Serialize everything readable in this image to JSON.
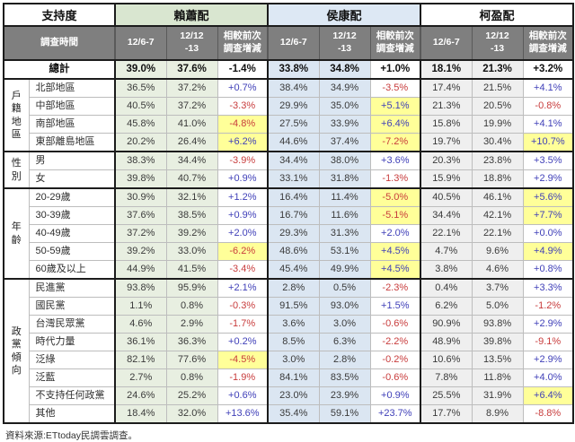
{
  "chart_data": {
    "type": "table",
    "corner_label": "支持度",
    "time_label": "調查時間",
    "candidates": [
      "賴蕭配",
      "侯康配",
      "柯盈配"
    ],
    "columns": [
      "12/6-7",
      "12/12\n-13",
      "相較前次\n調查增減"
    ],
    "legend": "change cell: blue = increase, red = decrease, yellow fill = notable shift",
    "total": {
      "label": "總計",
      "cells": [
        [
          "39.0%",
          "37.6%",
          "-1.4%",
          0
        ],
        [
          "33.8%",
          "34.8%",
          "+1.0%",
          0
        ],
        [
          "18.1%",
          "21.3%",
          "+3.2%",
          0
        ]
      ]
    },
    "sections": [
      {
        "label": "戶籍地區",
        "rows": [
          {
            "label": "北部地區",
            "cells": [
              [
                "36.5%",
                "37.2%",
                "+0.7%",
                0
              ],
              [
                "38.4%",
                "34.9%",
                "-3.5%",
                0
              ],
              [
                "17.4%",
                "21.5%",
                "+4.1%",
                0
              ]
            ]
          },
          {
            "label": "中部地區",
            "cells": [
              [
                "40.5%",
                "37.2%",
                "-3.3%",
                0
              ],
              [
                "29.9%",
                "35.0%",
                "+5.1%",
                1
              ],
              [
                "21.3%",
                "20.5%",
                "-0.8%",
                0
              ]
            ]
          },
          {
            "label": "南部地區",
            "cells": [
              [
                "45.8%",
                "41.0%",
                "-4.8%",
                1
              ],
              [
                "27.5%",
                "33.9%",
                "+6.4%",
                1
              ],
              [
                "15.8%",
                "19.9%",
                "+4.1%",
                0
              ]
            ]
          },
          {
            "label": "東部離島地區",
            "cells": [
              [
                "20.2%",
                "26.4%",
                "+6.2%",
                1
              ],
              [
                "44.6%",
                "37.4%",
                "-7.2%",
                1
              ],
              [
                "19.7%",
                "30.4%",
                "+10.7%",
                1
              ]
            ]
          }
        ]
      },
      {
        "label": "性別",
        "rows": [
          {
            "label": "男",
            "cells": [
              [
                "38.3%",
                "34.4%",
                "-3.9%",
                0
              ],
              [
                "34.4%",
                "38.0%",
                "+3.6%",
                0
              ],
              [
                "20.3%",
                "23.8%",
                "+3.5%",
                0
              ]
            ]
          },
          {
            "label": "女",
            "cells": [
              [
                "39.8%",
                "40.7%",
                "+0.9%",
                0
              ],
              [
                "33.1%",
                "31.8%",
                "-1.3%",
                0
              ],
              [
                "15.9%",
                "18.8%",
                "+2.9%",
                0
              ]
            ]
          }
        ]
      },
      {
        "label": "年齡",
        "rows": [
          {
            "label": "20-29歲",
            "cells": [
              [
                "30.9%",
                "32.1%",
                "+1.2%",
                0
              ],
              [
                "16.4%",
                "11.4%",
                "-5.0%",
                1
              ],
              [
                "40.5%",
                "46.1%",
                "+5.6%",
                1
              ]
            ]
          },
          {
            "label": "30-39歲",
            "cells": [
              [
                "37.6%",
                "38.5%",
                "+0.9%",
                0
              ],
              [
                "16.7%",
                "11.6%",
                "-5.1%",
                1
              ],
              [
                "34.4%",
                "42.1%",
                "+7.7%",
                1
              ]
            ]
          },
          {
            "label": "40-49歲",
            "cells": [
              [
                "37.2%",
                "39.2%",
                "+2.0%",
                0
              ],
              [
                "29.3%",
                "31.3%",
                "+2.0%",
                0
              ],
              [
                "22.1%",
                "22.1%",
                "+0.0%",
                0
              ]
            ]
          },
          {
            "label": "50-59歲",
            "cells": [
              [
                "39.2%",
                "33.0%",
                "-6.2%",
                1
              ],
              [
                "48.6%",
                "53.1%",
                "+4.5%",
                1
              ],
              [
                "4.7%",
                "9.6%",
                "+4.9%",
                1
              ]
            ]
          },
          {
            "label": "60歲及以上",
            "cells": [
              [
                "44.9%",
                "41.5%",
                "-3.4%",
                0
              ],
              [
                "45.4%",
                "49.9%",
                "+4.5%",
                1
              ],
              [
                "3.8%",
                "4.6%",
                "+0.8%",
                0
              ]
            ]
          }
        ]
      },
      {
        "label": "政黨傾向",
        "rows": [
          {
            "label": "民進黨",
            "cells": [
              [
                "93.8%",
                "95.9%",
                "+2.1%",
                0
              ],
              [
                "2.8%",
                "0.5%",
                "-2.3%",
                0
              ],
              [
                "0.4%",
                "3.7%",
                "+3.3%",
                0
              ]
            ]
          },
          {
            "label": "國民黨",
            "cells": [
              [
                "1.1%",
                "0.8%",
                "-0.3%",
                0
              ],
              [
                "91.5%",
                "93.0%",
                "+1.5%",
                0
              ],
              [
                "6.2%",
                "5.0%",
                "-1.2%",
                0
              ]
            ]
          },
          {
            "label": "台灣民眾黨",
            "cells": [
              [
                "4.6%",
                "2.9%",
                "-1.7%",
                0
              ],
              [
                "3.6%",
                "3.0%",
                "-0.6%",
                0
              ],
              [
                "90.9%",
                "93.8%",
                "+2.9%",
                0
              ]
            ]
          },
          {
            "label": "時代力量",
            "cells": [
              [
                "36.1%",
                "36.3%",
                "+0.2%",
                0
              ],
              [
                "8.5%",
                "6.3%",
                "-2.2%",
                0
              ],
              [
                "48.9%",
                "39.8%",
                "-9.1%",
                0
              ]
            ]
          },
          {
            "label": "泛綠",
            "cells": [
              [
                "82.1%",
                "77.6%",
                "-4.5%",
                1
              ],
              [
                "3.0%",
                "2.8%",
                "-0.2%",
                0
              ],
              [
                "10.6%",
                "13.5%",
                "+2.9%",
                0
              ]
            ]
          },
          {
            "label": "泛藍",
            "cells": [
              [
                "2.7%",
                "0.8%",
                "-1.9%",
                0
              ],
              [
                "84.1%",
                "83.5%",
                "-0.6%",
                0
              ],
              [
                "7.8%",
                "11.8%",
                "+4.0%",
                0
              ]
            ]
          },
          {
            "label": "不支持任何政黨",
            "cells": [
              [
                "24.6%",
                "25.2%",
                "+0.6%",
                0
              ],
              [
                "23.0%",
                "23.9%",
                "+0.9%",
                0
              ],
              [
                "25.5%",
                "31.9%",
                "+6.4%",
                1
              ]
            ]
          },
          {
            "label": "其他",
            "cells": [
              [
                "18.4%",
                "32.0%",
                "+13.6%",
                0
              ],
              [
                "35.4%",
                "59.1%",
                "+23.7%",
                0
              ],
              [
                "17.7%",
                "8.9%",
                "-8.8%",
                0
              ]
            ]
          }
        ]
      }
    ]
  },
  "footer": "資料來源:ETtoday民調雲調查。",
  "colors": {
    "positive_text": "#3f3fb8",
    "negative_text": "#c83c3c",
    "highlight_fill": "#ffff99",
    "lai_hsiao_green": "#e8efe1",
    "hou_kang_blue": "#dbe6f2",
    "ko_ying_gray": "#efefef",
    "header_dark_gray": "#7f7f7f"
  }
}
